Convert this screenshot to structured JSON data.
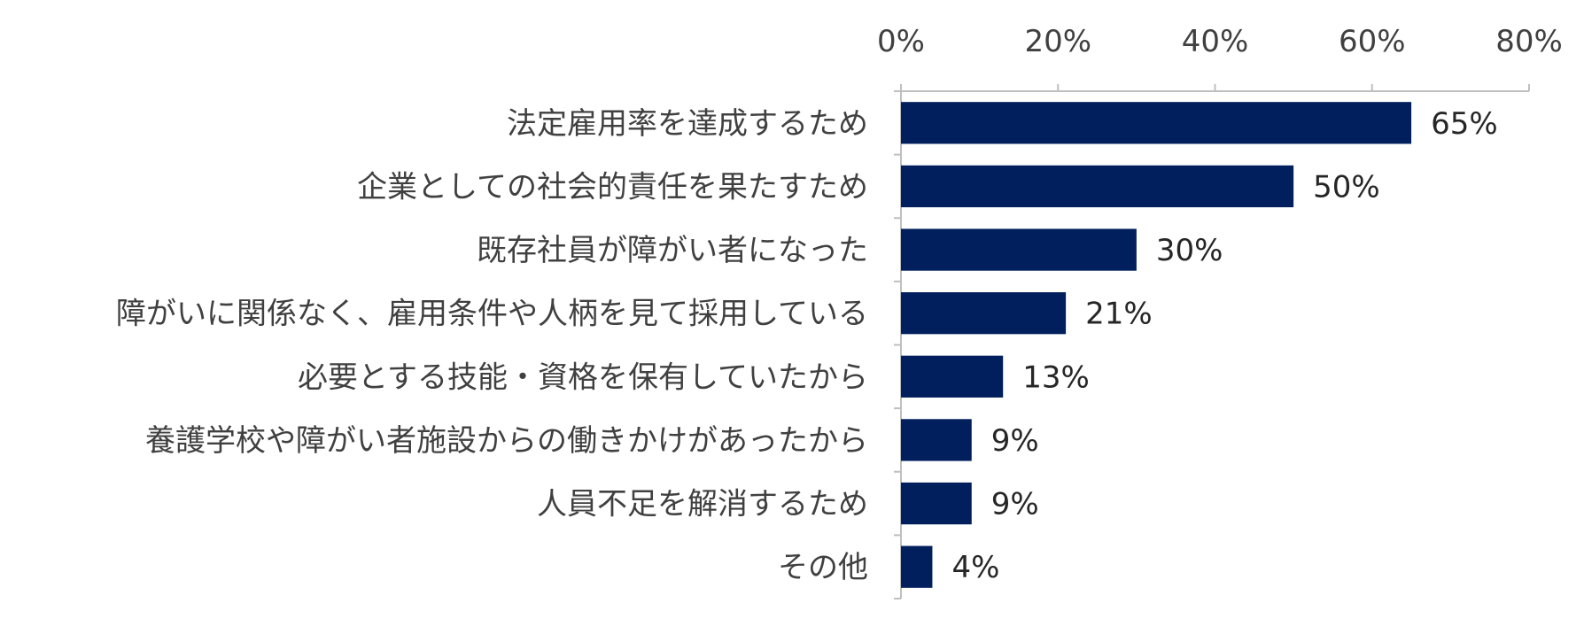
{
  "chart_data": {
    "type": "bar",
    "orientation": "horizontal",
    "categories": [
      "法定雇用率を達成するため",
      "企業としての社会的責任を果たすため",
      "既存社員が障がい者になった",
      "障がいに関係なく、雇用条件や人柄を見て採用している",
      "必要とする技能・資格を保有していたから",
      "養護学校や障がい者施設からの働きかけがあったから",
      "人員不足を解消するため",
      "その他"
    ],
    "values": [
      65,
      50,
      30,
      21,
      13,
      9,
      9,
      4
    ],
    "value_labels": [
      "65%",
      "50%",
      "30%",
      "21%",
      "13%",
      "9%",
      "9%",
      "4%"
    ],
    "xlim": [
      0,
      80
    ],
    "x_ticks": [
      0,
      20,
      40,
      60,
      80
    ],
    "x_tick_labels": [
      "0%",
      "20%",
      "40%",
      "60%",
      "80%"
    ],
    "x_axis_position": "top",
    "grid": false,
    "legend": "none",
    "bar_color": "#001F5C",
    "axis_color": "#BFBFBF"
  }
}
